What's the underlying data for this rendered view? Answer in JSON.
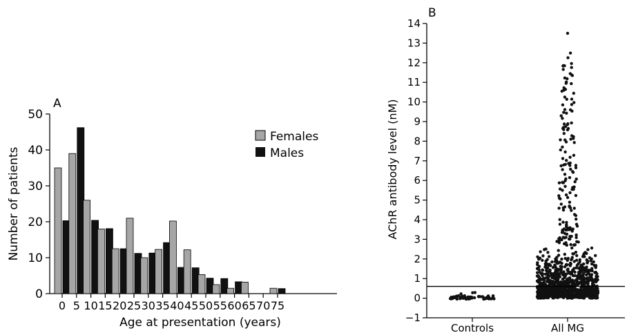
{
  "chart_data": [
    {
      "panel_label": "A",
      "type": "bar",
      "xlabel": "Age at presentation (years)",
      "ylabel": "Number of patients",
      "ylim": [
        0,
        50
      ],
      "yticks": [
        0,
        10,
        20,
        30,
        40,
        50
      ],
      "categories": [
        "0",
        "5",
        "10",
        "15",
        "20",
        "25",
        "30",
        "35",
        "40",
        "45",
        "50",
        "55",
        "60",
        "65",
        "70",
        "75"
      ],
      "legend": "top-right",
      "series": [
        {
          "name": "Females",
          "color": "#a6a6a6",
          "values": [
            35,
            39,
            26,
            18,
            12.5,
            21,
            10,
            12.3,
            20.2,
            12.2,
            5.3,
            2.5,
            1.5,
            3.2,
            0,
            1.5
          ]
        },
        {
          "name": "Males",
          "color": "#111111",
          "values": [
            20.3,
            46.2,
            20.4,
            18.1,
            12.5,
            11.2,
            11.3,
            14.2,
            7.3,
            7.2,
            4.3,
            4.2,
            3.3,
            0,
            0,
            1.4
          ]
        }
      ]
    },
    {
      "panel_label": "B",
      "type": "scatter",
      "ylabel": "AChR antibody level (nM)",
      "xlabel": "",
      "ylim": [
        -1,
        14
      ],
      "yticks": [
        -1,
        0,
        1,
        2,
        3,
        4,
        5,
        6,
        7,
        8,
        9,
        10,
        11,
        12,
        13,
        14
      ],
      "categories": [
        "Controls",
        "All MG"
      ],
      "reference_line": 0.6,
      "point_color": "#111111",
      "max_point": 13.5
    }
  ]
}
